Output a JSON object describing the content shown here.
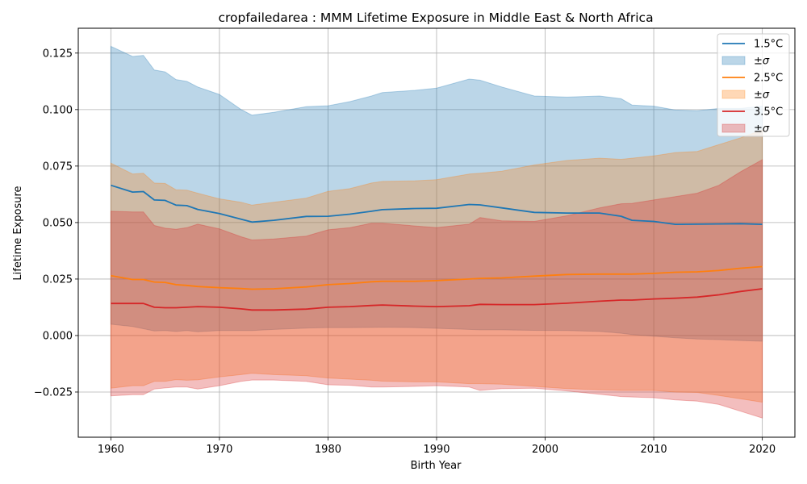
{
  "chart_data": {
    "type": "line",
    "title": "cropfailedarea : MMM Lifetime Exposure in Middle East & North Africa",
    "xlabel": "Birth Year",
    "ylabel": "Lifetime Exposure",
    "xlim": [
      1957,
      2023
    ],
    "ylim": [
      -0.045,
      0.136
    ],
    "xticks": [
      1960,
      1970,
      1980,
      1990,
      2000,
      2010,
      2020
    ],
    "xtick_labels": [
      "1960",
      "1970",
      "1980",
      "1990",
      "2000",
      "2010",
      "2020"
    ],
    "yticks": [
      -0.025,
      0,
      0.025,
      0.05,
      0.075,
      0.1,
      0.125
    ],
    "ytick_labels": [
      "−0.025",
      "0.000",
      "0.025",
      "0.050",
      "0.075",
      "0.100",
      "0.125"
    ],
    "grid": true,
    "legend_position": "top-right",
    "x": [
      1960,
      1962,
      1963,
      1964,
      1965,
      1966,
      1967,
      1968,
      1970,
      1972,
      1973,
      1975,
      1978,
      1980,
      1982,
      1984,
      1985,
      1988,
      1990,
      1993,
      1994,
      1996,
      1999,
      2002,
      2005,
      2007,
      2008,
      2010,
      2012,
      2014,
      2016,
      2018,
      2020
    ],
    "series": [
      {
        "name": "1.5°C",
        "sigma_name": "±σ",
        "color": "#1f77b4",
        "band_color": "#1f77b4",
        "mean": [
          0.0665,
          0.0635,
          0.0637,
          0.06,
          0.0598,
          0.0577,
          0.0575,
          0.0558,
          0.054,
          0.0515,
          0.0502,
          0.051,
          0.0527,
          0.0528,
          0.0537,
          0.055,
          0.0557,
          0.0562,
          0.0563,
          0.058,
          0.0578,
          0.0565,
          0.0545,
          0.0542,
          0.0542,
          0.0528,
          0.051,
          0.0505,
          0.0492,
          0.0493,
          0.0494,
          0.0495,
          0.0492
        ],
        "upper": [
          0.128,
          0.1235,
          0.124,
          0.1175,
          0.1167,
          0.1133,
          0.1125,
          0.11,
          0.1067,
          0.1,
          0.0975,
          0.0988,
          0.1013,
          0.1017,
          0.1035,
          0.106,
          0.1075,
          0.1085,
          0.1095,
          0.1135,
          0.113,
          0.11,
          0.106,
          0.1055,
          0.106,
          0.1048,
          0.102,
          0.1015,
          0.0998,
          0.0995,
          0.1005,
          0.1005,
          0.1015
        ],
        "lower": [
          0.005,
          0.004,
          0.003,
          0.002,
          0.0022,
          0.0018,
          0.0022,
          0.0017,
          0.0022,
          0.0022,
          0.0022,
          0.0027,
          0.0033,
          0.0035,
          0.0035,
          0.0036,
          0.0037,
          0.0035,
          0.0032,
          0.0027,
          0.0025,
          0.0025,
          0.0023,
          0.0022,
          0.0018,
          0.001,
          0.0004,
          -0.0003,
          -0.001,
          -0.0015,
          -0.0018,
          -0.0022,
          -0.0025
        ]
      },
      {
        "name": "2.5°C",
        "sigma_name": "±σ",
        "color": "#ff7f0e",
        "band_color": "#ff7f0e",
        "mean": [
          0.0265,
          0.0248,
          0.0248,
          0.0237,
          0.0235,
          0.0225,
          0.0222,
          0.0217,
          0.0212,
          0.0208,
          0.0205,
          0.0207,
          0.0215,
          0.0225,
          0.023,
          0.0238,
          0.024,
          0.024,
          0.0243,
          0.025,
          0.0253,
          0.0255,
          0.0263,
          0.027,
          0.0272,
          0.0272,
          0.0272,
          0.0275,
          0.028,
          0.0282,
          0.0288,
          0.0298,
          0.0305
        ],
        "upper": [
          0.0763,
          0.0715,
          0.0718,
          0.0675,
          0.0673,
          0.0645,
          0.0643,
          0.063,
          0.0605,
          0.059,
          0.0577,
          0.059,
          0.0608,
          0.0638,
          0.065,
          0.0675,
          0.0682,
          0.0685,
          0.069,
          0.0715,
          0.0718,
          0.0727,
          0.0755,
          0.0775,
          0.0785,
          0.078,
          0.0785,
          0.0795,
          0.081,
          0.0815,
          0.0845,
          0.0875,
          0.091
        ],
        "lower": [
          -0.0233,
          -0.0222,
          -0.0222,
          -0.0203,
          -0.0203,
          -0.0195,
          -0.0198,
          -0.0196,
          -0.0183,
          -0.0173,
          -0.0167,
          -0.0173,
          -0.0178,
          -0.0188,
          -0.0193,
          -0.0198,
          -0.0202,
          -0.0205,
          -0.0205,
          -0.0213,
          -0.0213,
          -0.0215,
          -0.0225,
          -0.0235,
          -0.024,
          -0.0243,
          -0.0243,
          -0.0243,
          -0.025,
          -0.0252,
          -0.0265,
          -0.028,
          -0.0295
        ]
      },
      {
        "name": "3.5°C",
        "sigma_name": "±σ",
        "color": "#d62728",
        "band_color": "#d62728",
        "mean": [
          0.0142,
          0.0142,
          0.0142,
          0.0125,
          0.0123,
          0.0123,
          0.0125,
          0.0128,
          0.0125,
          0.0118,
          0.0113,
          0.0113,
          0.0117,
          0.0125,
          0.0128,
          0.0133,
          0.0135,
          0.013,
          0.0128,
          0.0132,
          0.0138,
          0.0137,
          0.0137,
          0.0143,
          0.0152,
          0.0157,
          0.0157,
          0.0162,
          0.0165,
          0.017,
          0.018,
          0.0195,
          0.0207
        ],
        "upper": [
          0.055,
          0.0547,
          0.0547,
          0.0487,
          0.0475,
          0.047,
          0.0477,
          0.0493,
          0.0472,
          0.0437,
          0.0423,
          0.0427,
          0.044,
          0.0468,
          0.0477,
          0.0497,
          0.0497,
          0.0485,
          0.0478,
          0.0493,
          0.0522,
          0.0508,
          0.0505,
          0.053,
          0.0565,
          0.0583,
          0.0585,
          0.06,
          0.0615,
          0.063,
          0.0665,
          0.0725,
          0.0778
        ],
        "lower": [
          -0.0267,
          -0.0262,
          -0.0262,
          -0.0237,
          -0.0232,
          -0.0228,
          -0.0228,
          -0.0237,
          -0.0222,
          -0.0203,
          -0.0197,
          -0.0197,
          -0.0203,
          -0.0218,
          -0.022,
          -0.0228,
          -0.0228,
          -0.0225,
          -0.0222,
          -0.0228,
          -0.0243,
          -0.0235,
          -0.0233,
          -0.0245,
          -0.026,
          -0.027,
          -0.0272,
          -0.0275,
          -0.0285,
          -0.029,
          -0.0305,
          -0.0335,
          -0.0365
        ]
      }
    ]
  }
}
